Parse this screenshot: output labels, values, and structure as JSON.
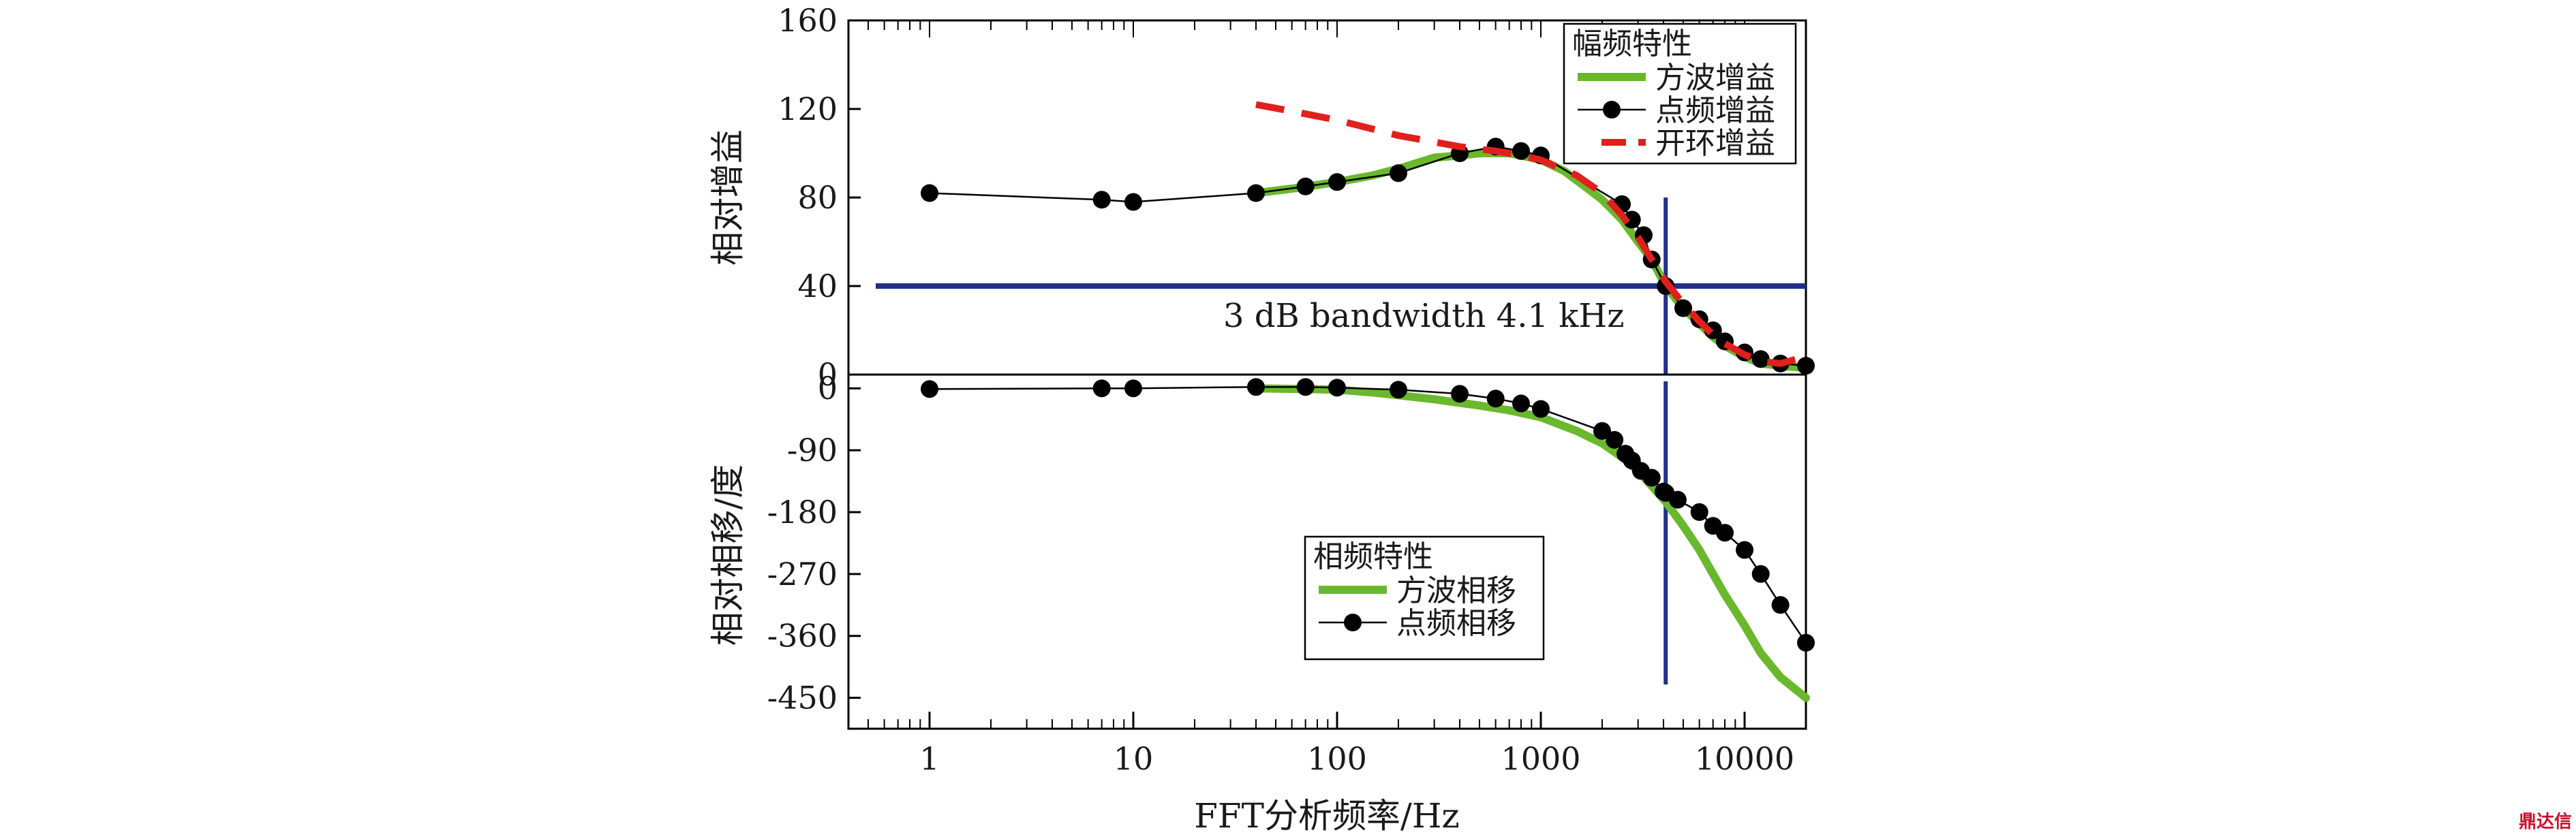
{
  "chart_data": [
    {
      "type": "line",
      "panel": "top",
      "ylabel": "相对增益",
      "xscale": "log",
      "xlim": [
        0.4,
        20000
      ],
      "ylim": [
        0,
        160
      ],
      "yticks": [
        "0",
        "40",
        "80",
        "120",
        "160"
      ],
      "legend": {
        "title": "幅频特性",
        "entries": [
          "方波增益",
          "点频增益",
          "开环增益"
        ],
        "position": "top-right"
      },
      "series": [
        {
          "name": "方波增益",
          "style": "solid",
          "color": "#6ab82e",
          "x": [
            40,
            60,
            100,
            150,
            200,
            300,
            400,
            500,
            600,
            700,
            800,
            1000,
            1300,
            1700,
            2000,
            2500,
            3000,
            3500,
            4100,
            5000,
            6000,
            7000,
            8000,
            10000,
            12000,
            15000,
            20000
          ],
          "y": [
            82,
            84,
            87,
            90,
            93,
            98,
            99,
            100,
            100,
            100,
            99,
            97,
            92,
            84,
            79,
            70,
            60,
            52,
            40,
            30,
            23,
            17,
            13,
            8,
            5,
            4,
            3
          ]
        },
        {
          "name": "点频增益",
          "style": "markers",
          "color": "#000000",
          "x": [
            1,
            7,
            10,
            40,
            70,
            100,
            200,
            400,
            600,
            800,
            1000,
            2500,
            2800,
            3200,
            3500,
            4100,
            5000,
            6000,
            7000,
            8000,
            10000,
            12000,
            15000,
            20000
          ],
          "y": [
            82,
            79,
            78,
            82,
            85,
            87,
            91,
            100,
            103,
            101,
            99,
            77,
            70,
            63,
            52,
            40,
            30,
            25,
            20,
            15,
            10,
            7,
            5,
            4
          ]
        },
        {
          "name": "开环增益",
          "style": "dashed",
          "color": "#e0201c",
          "x": [
            40,
            60,
            100,
            200,
            400,
            600,
            800,
            1000,
            1500,
            2000,
            2500,
            3000,
            3500,
            4100,
            5000,
            6000,
            7000,
            8000,
            10000,
            12000,
            15000,
            18000,
            20000
          ],
          "y": [
            122,
            119,
            115,
            108,
            103,
            101,
            99,
            97,
            90,
            82,
            72,
            62,
            52,
            42,
            32,
            24,
            18,
            14,
            9,
            6,
            5,
            7,
            12
          ]
        }
      ],
      "annotations": [
        {
          "text": "3 dB bandwidth 4.1 kHz",
          "type": "hline",
          "y": 40,
          "color": "#1f2f8a"
        },
        {
          "type": "vline",
          "x": 4100,
          "color": "#1f2f8a"
        }
      ]
    },
    {
      "type": "line",
      "panel": "bottom",
      "xlabel": "FFT分析频率/Hz",
      "ylabel": "相对相移/度",
      "xscale": "log",
      "xlim": [
        0.4,
        20000
      ],
      "ylim": [
        -495,
        20
      ],
      "xticks": [
        "1",
        "10",
        "100",
        "1000",
        "10000"
      ],
      "yticks": [
        "0",
        "-90",
        "-180",
        "-270",
        "-360",
        "-450"
      ],
      "legend": {
        "title": "相频特性",
        "entries": [
          "方波相移",
          "点频相移"
        ],
        "position": "bottom-center"
      },
      "series": [
        {
          "name": "方波相移",
          "style": "solid",
          "color": "#6ab82e",
          "x": [
            40,
            70,
            100,
            150,
            200,
            300,
            500,
            700,
            1000,
            1500,
            2000,
            2500,
            3000,
            3500,
            4100,
            5000,
            6000,
            7000,
            8000,
            10000,
            12000,
            15000,
            20000
          ],
          "y": [
            0,
            -1,
            -2,
            -6,
            -10,
            -16,
            -25,
            -32,
            -42,
            -62,
            -80,
            -100,
            -120,
            -142,
            -165,
            -200,
            -235,
            -270,
            -300,
            -345,
            -385,
            -420,
            -450
          ]
        },
        {
          "name": "点频相移",
          "style": "markers",
          "color": "#000000",
          "x": [
            1,
            7,
            10,
            40,
            70,
            100,
            200,
            400,
            600,
            800,
            1000,
            2000,
            2300,
            2600,
            2800,
            3100,
            3500,
            4000,
            4100,
            4700,
            6000,
            7000,
            8000,
            10000,
            12000,
            15000,
            20000
          ],
          "y": [
            -1,
            0,
            0,
            2,
            2,
            1,
            -2,
            -8,
            -15,
            -22,
            -30,
            -62,
            -75,
            -95,
            -105,
            -120,
            -130,
            -150,
            -152,
            -162,
            -180,
            -200,
            -210,
            -235,
            -270,
            -315,
            -370
          ]
        }
      ],
      "annotations": [
        {
          "type": "vline",
          "x": 4100,
          "color": "#1f2f8a"
        }
      ]
    }
  ],
  "watermark": "鼎达信"
}
